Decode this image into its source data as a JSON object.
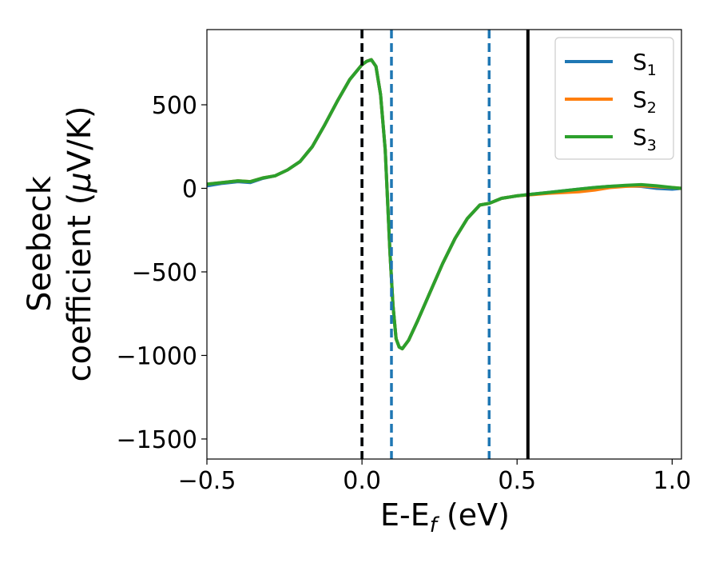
{
  "chart_data": {
    "type": "line",
    "xlabel_main": "E-E",
    "xlabel_sub": "f",
    "xlabel_tail": " (eV)",
    "ylabel_line1": "Seebeck",
    "ylabel_line2_pre": "coefficient  (",
    "ylabel_mu": "μ",
    "ylabel_line2_post": "V/K)",
    "xlim": [
      -0.5,
      1.03
    ],
    "ylim": [
      -1620,
      950
    ],
    "x_ticks": [
      -0.5,
      0.0,
      0.5,
      1.0
    ],
    "x_tick_labels": [
      "−0.5",
      "0.0",
      "0.5",
      "1.0"
    ],
    "y_ticks": [
      500,
      0,
      -500,
      -1000,
      -1500
    ],
    "y_tick_labels": [
      "500",
      "0",
      "−500",
      "−1000",
      "−1500"
    ],
    "legend_position": "top-right",
    "vlines": [
      {
        "x": 0.0,
        "style": "dashed",
        "color": "#1f77b4"
      },
      {
        "x": 0.0,
        "style": "dashed",
        "color": "#000000"
      },
      {
        "x": 0.095,
        "style": "dashed",
        "color": "#1f77b4"
      },
      {
        "x": 0.41,
        "style": "dashed",
        "color": "#1f77b4"
      },
      {
        "x": 0.535,
        "style": "solid",
        "color": "#000000"
      }
    ],
    "series": [
      {
        "name": "S",
        "sub": "1",
        "color": "#1f77b4",
        "x": [
          -0.5,
          -0.45,
          -0.4,
          -0.36,
          -0.32,
          -0.28,
          -0.24,
          -0.2,
          -0.16,
          -0.12,
          -0.08,
          -0.04,
          0.0,
          0.015,
          0.03,
          0.045,
          0.06,
          0.075,
          0.09,
          0.1,
          0.11,
          0.12,
          0.13,
          0.15,
          0.18,
          0.22,
          0.26,
          0.3,
          0.34,
          0.38,
          0.41,
          0.45,
          0.5,
          0.55,
          0.6,
          0.65,
          0.7,
          0.75,
          0.8,
          0.85,
          0.9,
          0.95,
          1.0,
          1.03
        ],
        "y": [
          15,
          30,
          40,
          35,
          60,
          75,
          110,
          160,
          250,
          380,
          520,
          650,
          740,
          760,
          770,
          730,
          560,
          230,
          -380,
          -700,
          -900,
          -950,
          -960,
          -910,
          -790,
          -620,
          -450,
          -300,
          -180,
          -100,
          -90,
          -60,
          -45,
          -35,
          -25,
          -15,
          -5,
          5,
          12,
          15,
          12,
          0,
          -5,
          0
        ]
      },
      {
        "name": "S",
        "sub": "2",
        "color": "#ff7f0e",
        "x": [
          -0.5,
          -0.45,
          -0.4,
          -0.36,
          -0.32,
          -0.28,
          -0.24,
          -0.2,
          -0.16,
          -0.12,
          -0.08,
          -0.04,
          0.0,
          0.015,
          0.03,
          0.045,
          0.06,
          0.075,
          0.09,
          0.1,
          0.11,
          0.12,
          0.13,
          0.15,
          0.18,
          0.22,
          0.26,
          0.3,
          0.34,
          0.38,
          0.41,
          0.45,
          0.5,
          0.55,
          0.6,
          0.65,
          0.7,
          0.75,
          0.8,
          0.85,
          0.9,
          0.95,
          1.0,
          1.03
        ],
        "y": [
          25,
          35,
          45,
          40,
          62,
          75,
          110,
          160,
          250,
          380,
          520,
          650,
          740,
          760,
          770,
          730,
          560,
          230,
          -380,
          -700,
          -900,
          -950,
          -960,
          -910,
          -790,
          -620,
          -450,
          -300,
          -180,
          -100,
          -90,
          -60,
          -45,
          -38,
          -30,
          -25,
          -20,
          -10,
          5,
          12,
          15,
          10,
          5,
          0
        ]
      },
      {
        "name": "S",
        "sub": "3",
        "color": "#2ca02c",
        "x": [
          -0.5,
          -0.45,
          -0.4,
          -0.36,
          -0.32,
          -0.28,
          -0.24,
          -0.2,
          -0.16,
          -0.12,
          -0.08,
          -0.04,
          0.0,
          0.015,
          0.03,
          0.045,
          0.06,
          0.075,
          0.09,
          0.1,
          0.11,
          0.12,
          0.13,
          0.15,
          0.18,
          0.22,
          0.26,
          0.3,
          0.34,
          0.38,
          0.41,
          0.45,
          0.5,
          0.55,
          0.6,
          0.65,
          0.7,
          0.75,
          0.8,
          0.85,
          0.9,
          0.95,
          1.0,
          1.03
        ],
        "y": [
          25,
          35,
          45,
          40,
          62,
          75,
          110,
          160,
          250,
          380,
          520,
          650,
          740,
          760,
          770,
          730,
          560,
          230,
          -380,
          -700,
          -900,
          -950,
          -960,
          -910,
          -790,
          -620,
          -450,
          -300,
          -180,
          -100,
          -90,
          -60,
          -45,
          -35,
          -25,
          -15,
          -5,
          5,
          12,
          18,
          22,
          15,
          5,
          0
        ]
      }
    ]
  }
}
